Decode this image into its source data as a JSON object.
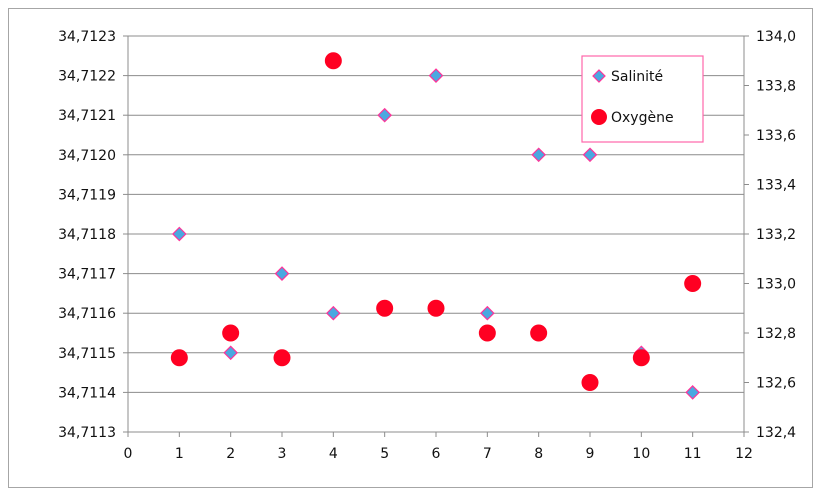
{
  "chart_data": {
    "type": "scatter",
    "x_axis": {
      "min": 0,
      "max": 12,
      "ticks": [
        "0",
        "1",
        "2",
        "3",
        "4",
        "5",
        "6",
        "7",
        "8",
        "9",
        "10",
        "11",
        "12"
      ]
    },
    "y_left": {
      "min": 34.7113,
      "max": 34.7123,
      "ticks": [
        "34,7113",
        "34,7114",
        "34,7115",
        "34,7116",
        "34,7117",
        "34,7118",
        "34,7119",
        "34,7120",
        "34,7121",
        "34,7122",
        "34,7123"
      ]
    },
    "y_right": {
      "min": 132.4,
      "max": 134.0,
      "ticks": [
        "132,4",
        "132,6",
        "132,8",
        "133,0",
        "133,2",
        "133,4",
        "133,6",
        "133,8",
        "134,0"
      ]
    },
    "grid": true,
    "legend_position": "top-right",
    "series": [
      {
        "name": "Salinité",
        "axis": "left",
        "marker": "diamond",
        "fill": "#4aa8e0",
        "stroke": "#ff3399",
        "points": [
          {
            "x": 1,
            "y": 34.7118
          },
          {
            "x": 2,
            "y": 34.7115
          },
          {
            "x": 3,
            "y": 34.7117
          },
          {
            "x": 4,
            "y": 34.7116
          },
          {
            "x": 5,
            "y": 34.7121
          },
          {
            "x": 6,
            "y": 34.7122
          },
          {
            "x": 7,
            "y": 34.7116
          },
          {
            "x": 8,
            "y": 34.712
          },
          {
            "x": 9,
            "y": 34.712
          },
          {
            "x": 10,
            "y": 34.7115
          },
          {
            "x": 11,
            "y": 34.7114
          }
        ]
      },
      {
        "name": "Oxygène",
        "axis": "right",
        "marker": "circle",
        "fill": "#ff0022",
        "stroke": "#ff0022",
        "points": [
          {
            "x": 1,
            "y": 132.7
          },
          {
            "x": 2,
            "y": 132.8
          },
          {
            "x": 3,
            "y": 132.7
          },
          {
            "x": 4,
            "y": 133.9
          },
          {
            "x": 5,
            "y": 132.9
          },
          {
            "x": 6,
            "y": 132.9
          },
          {
            "x": 7,
            "y": 132.8
          },
          {
            "x": 8,
            "y": 132.8
          },
          {
            "x": 9,
            "y": 132.6
          },
          {
            "x": 10,
            "y": 132.7
          },
          {
            "x": 11,
            "y": 133.0
          }
        ]
      }
    ],
    "colors": {
      "gridline": "#8c8c8c",
      "axis": "#8c8c8c",
      "legend_border": "#ff66aa"
    }
  }
}
